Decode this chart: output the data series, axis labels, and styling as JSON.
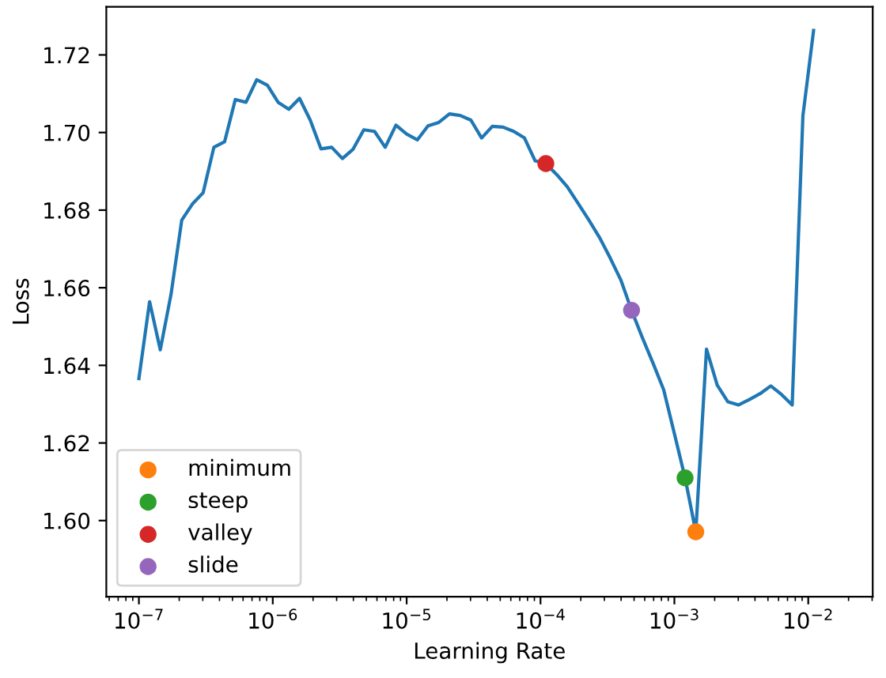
{
  "chart_data": {
    "type": "line",
    "xlabel": "Learning Rate",
    "ylabel": "Loss",
    "log": "x",
    "legend": "bottom left",
    "grid": false,
    "xlim": [
      5.71e-08,
      0.0303
    ],
    "ylim": [
      1.5804,
      1.7324
    ],
    "xticks": [
      {
        "value": 1e-07,
        "label": "10$^{−7}$"
      },
      {
        "value": 1e-06,
        "label": "10$^{−6}$"
      },
      {
        "value": 1e-05,
        "label": "10$^{−5}$"
      },
      {
        "value": 0.0001,
        "label": "10$^{−4}$"
      },
      {
        "value": 0.001,
        "label": "10$^{−3}$"
      },
      {
        "value": 0.01,
        "label": "10$^{−2}$"
      }
    ],
    "yticks": [
      {
        "value": 1.6,
        "label": "1.60"
      },
      1.62,
      1.64,
      1.66,
      1.68,
      {
        "value": 1.7,
        "label": "1.70"
      },
      1.72
    ],
    "series": [
      {
        "color": "#1f77b4",
        "x": [
          1e-07,
          1.202e-07,
          1.445e-07,
          1.738e-07,
          2.089e-07,
          2.512e-07,
          3.02e-07,
          3.631e-07,
          4.365e-07,
          5.248e-07,
          6.31e-07,
          7.586e-07,
          9.12e-07,
          1.096e-06,
          1.318e-06,
          1.585e-06,
          1.905e-06,
          2.291e-06,
          2.754e-06,
          3.311e-06,
          3.981e-06,
          4.786e-06,
          5.754e-06,
          6.918e-06,
          8.318e-06,
          1e-05,
          1.202e-05,
          1.445e-05,
          1.738e-05,
          2.089e-05,
          2.512e-05,
          3.02e-05,
          3.631e-05,
          4.365e-05,
          5.248e-05,
          6.31e-05,
          7.586e-05,
          9.12e-05,
          0.0001096,
          0.0001318,
          0.0001585,
          0.0001905,
          0.0002291,
          0.0002754,
          0.0003311,
          0.0003981,
          0.0004786,
          0.0005754,
          0.0006918,
          0.0008318,
          0.001,
          0.001202,
          0.001445,
          0.001738,
          0.002089,
          0.002512,
          0.00302,
          0.003631,
          0.004365,
          0.005248,
          0.00631,
          0.007586,
          0.00912,
          0.01096
        ],
        "values": [
          1.6366,
          1.6564,
          1.644,
          1.6583,
          1.6774,
          1.6816,
          1.6845,
          1.6962,
          1.6976,
          1.7085,
          1.7078,
          1.7136,
          1.7122,
          1.7078,
          1.706,
          1.7088,
          1.7032,
          1.6958,
          1.6962,
          1.6933,
          1.6957,
          1.7007,
          1.7003,
          1.6962,
          1.7019,
          1.6996,
          1.6981,
          1.7017,
          1.7026,
          1.7048,
          1.7044,
          1.7032,
          1.6986,
          1.7016,
          1.7014,
          1.7003,
          1.6986,
          1.6927,
          1.692,
          1.6892,
          1.686,
          1.6818,
          1.6775,
          1.673,
          1.6677,
          1.662,
          1.6542,
          1.6472,
          1.6406,
          1.6337,
          1.6224,
          1.611,
          1.5971,
          1.6442,
          1.6349,
          1.6306,
          1.6298,
          1.6312,
          1.6327,
          1.6347,
          1.6325,
          1.6298,
          1.7043,
          1.7263
        ]
      },
      {
        "type": "scatter",
        "name": "minimum",
        "color": "#ff7f0e",
        "marker": "circle",
        "x": [
          0.001445
        ],
        "values": [
          1.5971
        ]
      },
      {
        "type": "scatter",
        "name": "steep",
        "color": "#2ca02c",
        "marker": "circle",
        "x": [
          0.001202
        ],
        "values": [
          1.611
        ]
      },
      {
        "type": "scatter",
        "name": "valley",
        "color": "#d62728",
        "marker": "circle",
        "x": [
          0.0001096
        ],
        "values": [
          1.692
        ]
      },
      {
        "type": "scatter",
        "name": "slide",
        "color": "#9467bd",
        "marker": "circle",
        "x": [
          0.0004786
        ],
        "values": [
          1.6542
        ]
      }
    ]
  }
}
